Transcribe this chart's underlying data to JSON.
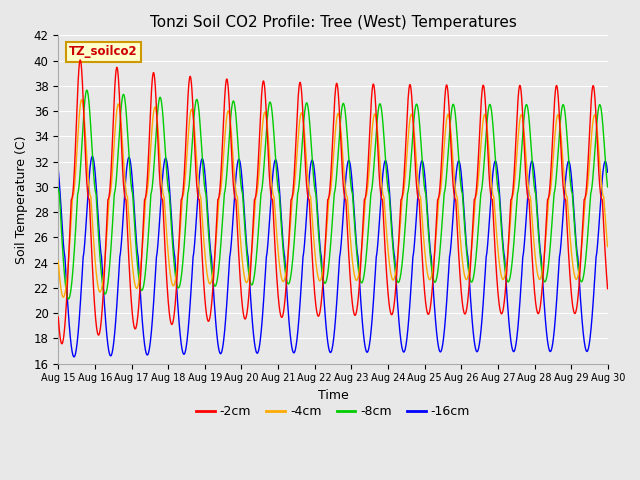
{
  "title": "Tonzi Soil CO2 Profile: Tree (West) Temperatures",
  "xlabel": "Time",
  "ylabel": "Soil Temperature (C)",
  "ylim": [
    16,
    42
  ],
  "xlim_days": [
    15,
    30
  ],
  "legend_labels": [
    "-2cm",
    "-4cm",
    "-8cm",
    "-16cm"
  ],
  "legend_colors": [
    "#ff0000",
    "#ffaa00",
    "#00cc00",
    "#0000ff"
  ],
  "annotation_text": "TZ_soilco2",
  "annotation_bg": "#ffffcc",
  "annotation_border": "#cc9900",
  "background_color": "#e8e8e8",
  "plot_bg": "#e8e8e8",
  "grid_color": "#ffffff",
  "tick_labels": [
    "Aug 15",
    "Aug 16",
    "Aug 17",
    "Aug 18",
    "Aug 19",
    "Aug 20",
    "Aug 21",
    "Aug 22",
    "Aug 23",
    "Aug 24",
    "Aug 25",
    "Aug 26",
    "Aug 27",
    "Aug 28",
    "Aug 29",
    "Aug 30"
  ],
  "num_days": 15,
  "samples_per_day": 144
}
